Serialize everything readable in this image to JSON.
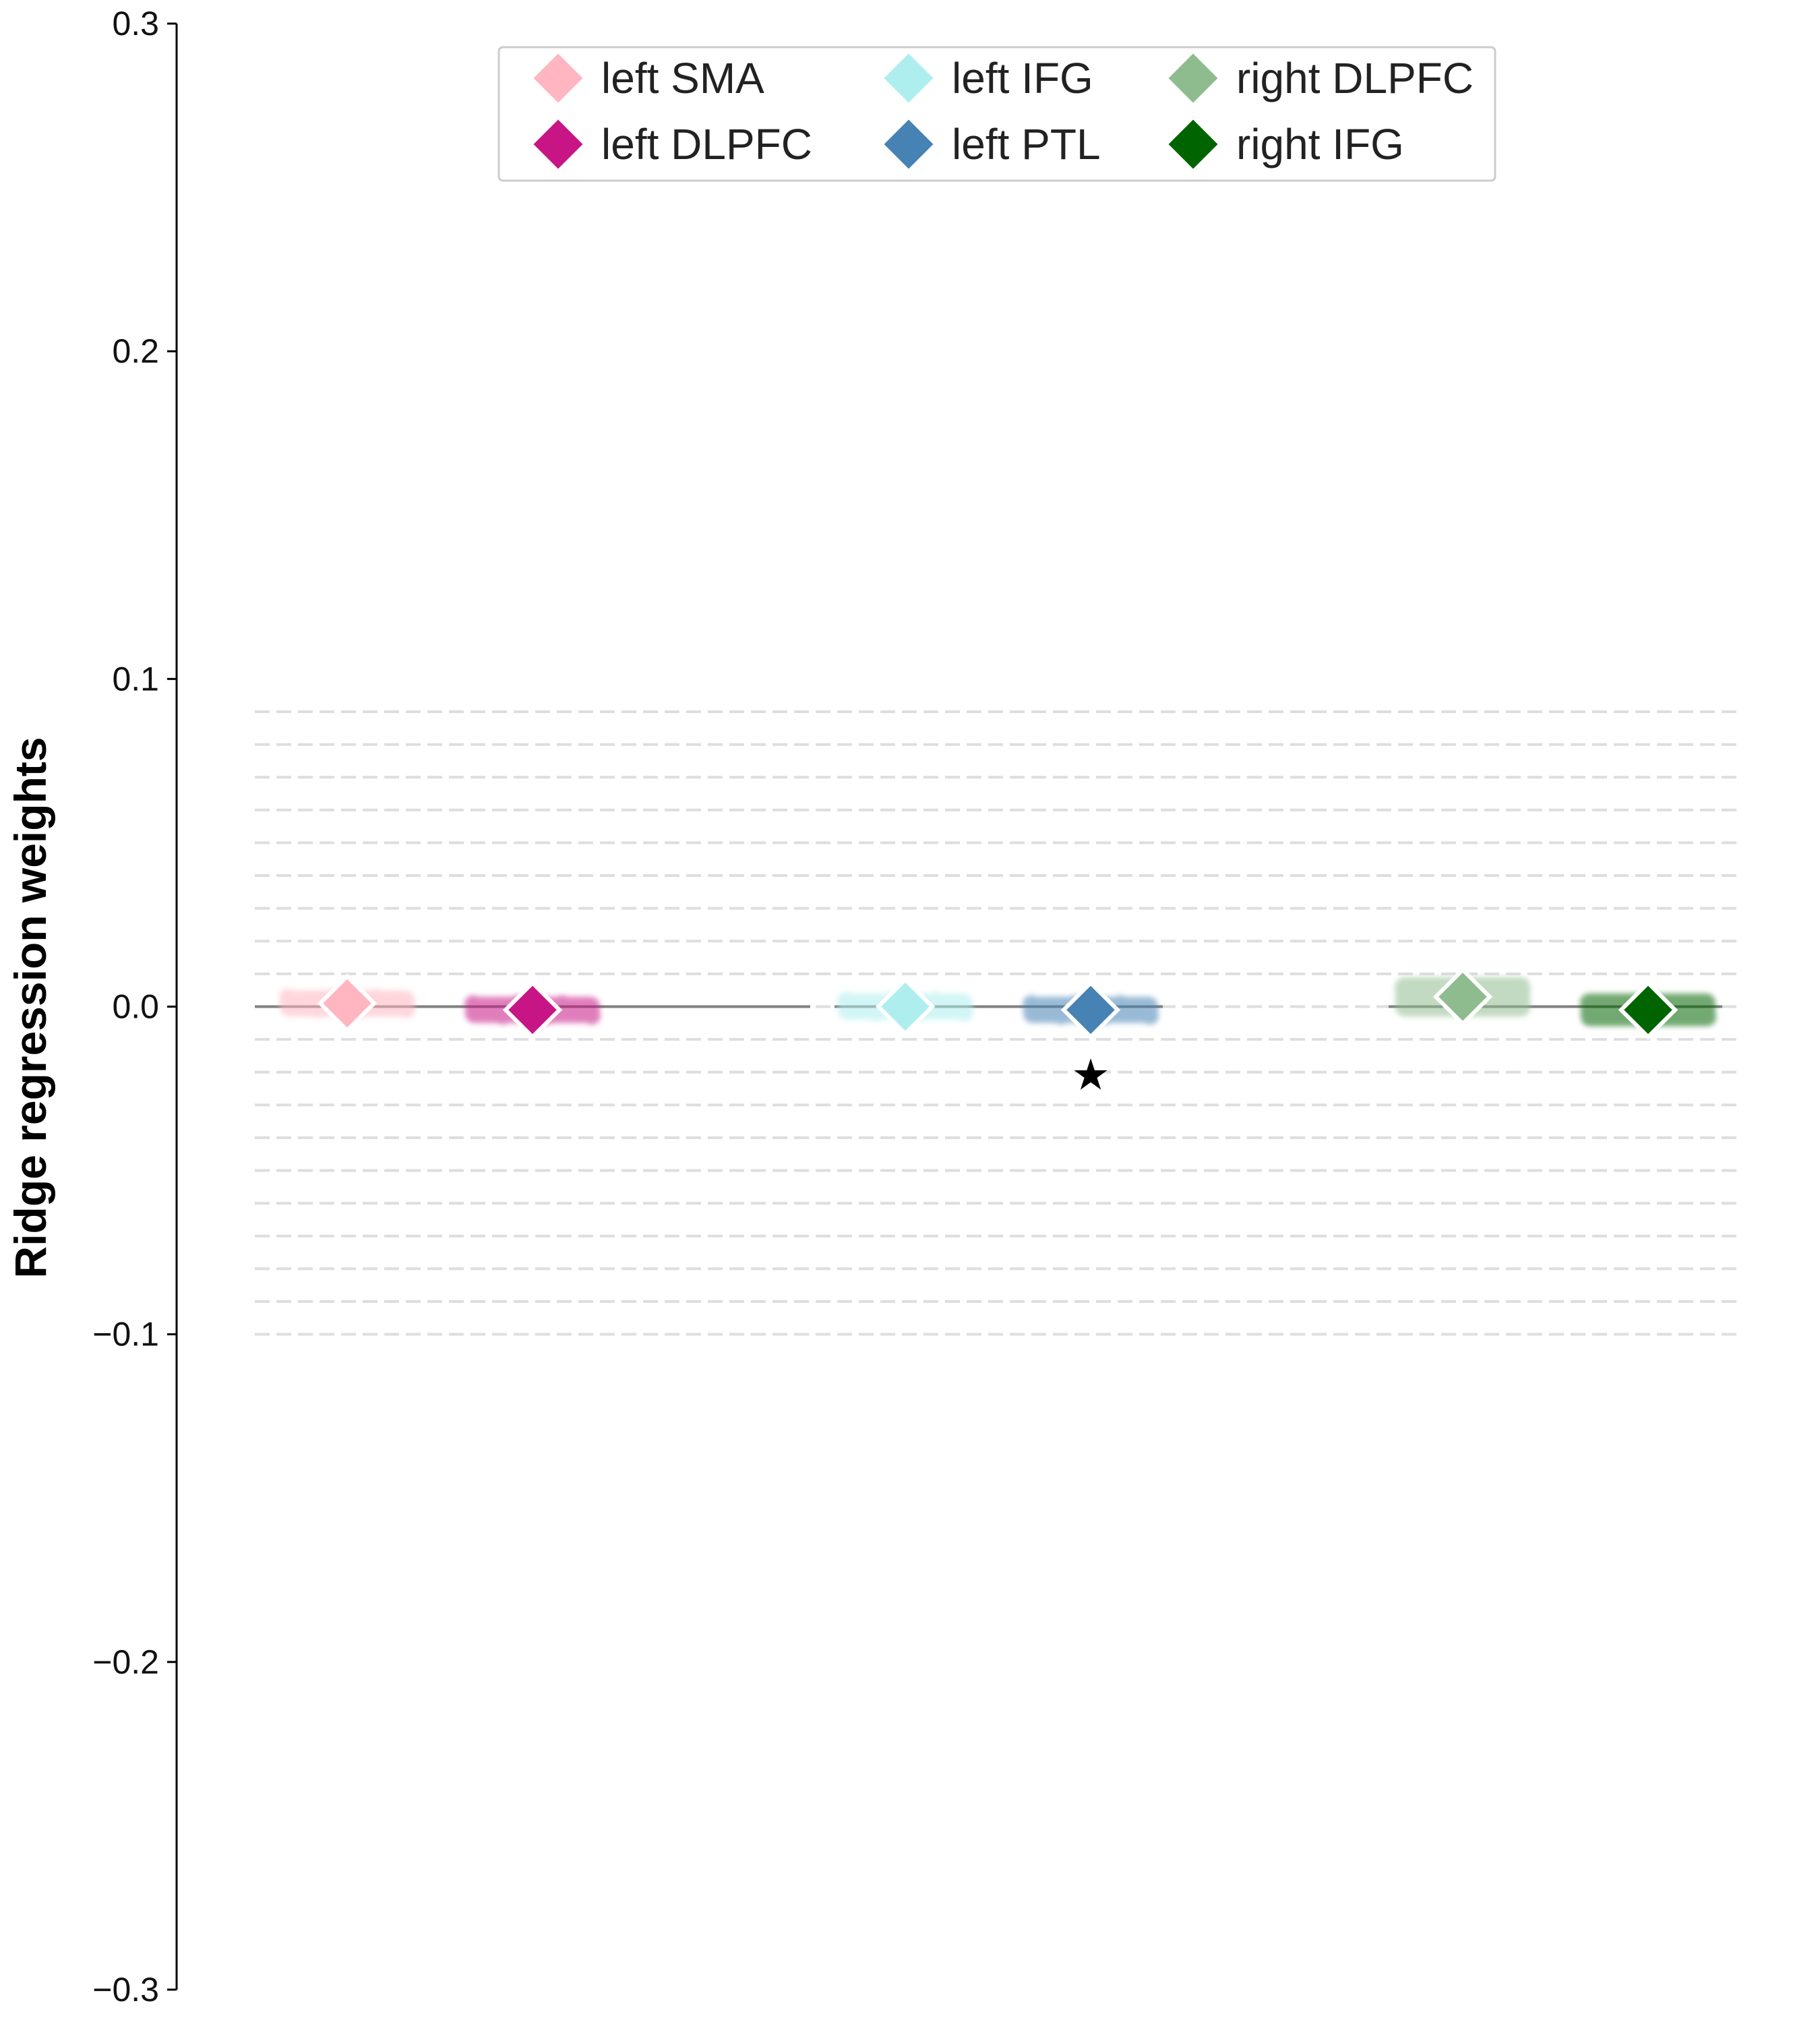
{
  "chart_data": {
    "type": "scatter",
    "title": "",
    "xlabel": "",
    "ylabel": "Ridge regression weights",
    "ylim": [
      -0.3,
      0.3
    ],
    "yticks": [
      0.3,
      0.2,
      0.1,
      0.0,
      -0.1,
      -0.2,
      -0.3
    ],
    "ytick_labels": [
      "0.3",
      "0.2",
      "0.1",
      "0.0",
      "−0.1",
      "−0.2",
      "−0.3"
    ],
    "grid": "dashed horizontal lines every 0.01 from -0.10 to 0.09",
    "legend_placement": "top-center",
    "significance_marker": "★",
    "series": [
      {
        "name": "left SMA",
        "group": 1,
        "mean": 0.001,
        "spread": 0.004,
        "color": "#FFB6C1",
        "significant": false
      },
      {
        "name": "left DLPFC",
        "group": 1,
        "mean": -0.001,
        "spread": 0.004,
        "color": "#C71585",
        "significant": false
      },
      {
        "name": "left IFG",
        "group": 2,
        "mean": 0.0,
        "spread": 0.004,
        "color": "#AFEEEE",
        "significant": false
      },
      {
        "name": "left PTL",
        "group": 2,
        "mean": -0.001,
        "spread": 0.004,
        "color": "#4682B4",
        "significant": true
      },
      {
        "name": "right DLPFC",
        "group": 3,
        "mean": 0.003,
        "spread": 0.006,
        "color": "#8FBC8F",
        "significant": false
      },
      {
        "name": "right IFG",
        "group": 3,
        "mean": -0.001,
        "spread": 0.005,
        "color": "#006400",
        "significant": false
      }
    ]
  }
}
